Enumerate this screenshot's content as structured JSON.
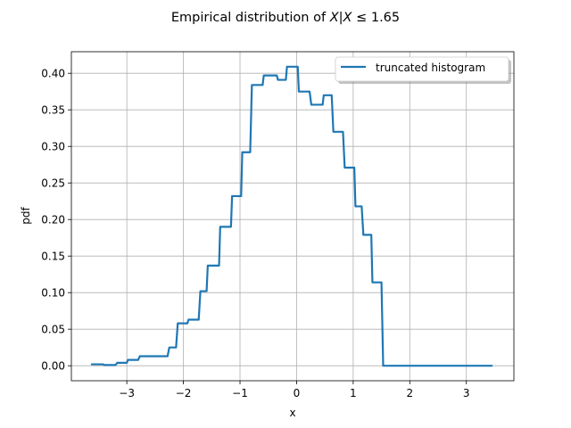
{
  "chart_data": {
    "type": "line",
    "title": "Empirical distribution of X|X ≤ 1.65",
    "xlabel": "x",
    "ylabel": "pdf",
    "xlim": [
      -3.98,
      3.84
    ],
    "ylim": [
      -0.0205,
      0.4295
    ],
    "xticks": [
      -3,
      -2,
      -1,
      0,
      1,
      2,
      3
    ],
    "xtick_labels": [
      "−3",
      "−2",
      "−1",
      "0",
      "1",
      "2",
      "3"
    ],
    "yticks": [
      0.0,
      0.05,
      0.1,
      0.15,
      0.2,
      0.25,
      0.3,
      0.35,
      0.4
    ],
    "ytick_labels": [
      "0.00",
      "0.05",
      "0.10",
      "0.15",
      "0.20",
      "0.25",
      "0.30",
      "0.35",
      "0.40"
    ],
    "grid": true,
    "legend_position": "top-right",
    "series": [
      {
        "name": "truncated histogram",
        "color": "#1f77b4",
        "x": [
          -3.62,
          -3.42,
          -3.4,
          -3.2,
          -3.17,
          -3.0,
          -2.98,
          -2.8,
          -2.77,
          -2.28,
          -2.25,
          -2.13,
          -2.1,
          -1.93,
          -1.91,
          -1.73,
          -1.7,
          -1.59,
          -1.57,
          -1.37,
          -1.35,
          -1.16,
          -1.14,
          -0.98,
          -0.96,
          -0.82,
          -0.79,
          -0.6,
          -0.58,
          -0.35,
          -0.33,
          -0.19,
          -0.17,
          0.02,
          0.04,
          0.23,
          0.26,
          0.46,
          0.48,
          0.62,
          0.65,
          0.82,
          0.85,
          1.02,
          1.04,
          1.15,
          1.18,
          1.32,
          1.34,
          1.5,
          1.53,
          1.66,
          1.68,
          3.45
        ],
        "y": [
          0.002,
          0.002,
          0.001,
          0.001,
          0.004,
          0.004,
          0.008,
          0.008,
          0.013,
          0.013,
          0.025,
          0.025,
          0.058,
          0.058,
          0.063,
          0.063,
          0.102,
          0.102,
          0.137,
          0.137,
          0.19,
          0.19,
          0.232,
          0.232,
          0.292,
          0.292,
          0.384,
          0.384,
          0.397,
          0.397,
          0.391,
          0.391,
          0.409,
          0.409,
          0.375,
          0.375,
          0.357,
          0.357,
          0.37,
          0.37,
          0.32,
          0.32,
          0.271,
          0.271,
          0.218,
          0.218,
          0.179,
          0.179,
          0.114,
          0.114,
          0.0,
          0.0,
          0.0,
          0.0
        ]
      }
    ]
  }
}
